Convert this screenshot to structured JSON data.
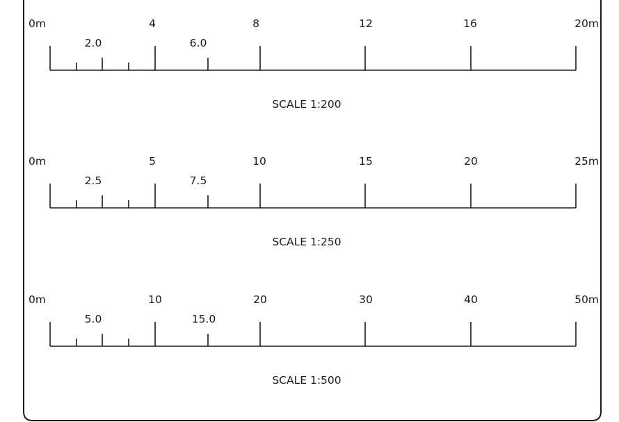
{
  "scales": [
    {
      "title": "SCALE 1:200",
      "major_labels": [
        "0m",
        "4",
        "8",
        "12",
        "16",
        "20m"
      ],
      "minor_labels": [
        "2.0",
        "6.0"
      ]
    },
    {
      "title": "SCALE 1:250",
      "major_labels": [
        "0m",
        "5",
        "10",
        "15",
        "20",
        "25m"
      ],
      "minor_labels": [
        "2.5",
        "7.5"
      ]
    },
    {
      "title": "SCALE 1:500",
      "major_labels": [
        "0m",
        "10",
        "20",
        "30",
        "40",
        "50m"
      ],
      "minor_labels": [
        "5.0",
        "15.0"
      ]
    }
  ]
}
